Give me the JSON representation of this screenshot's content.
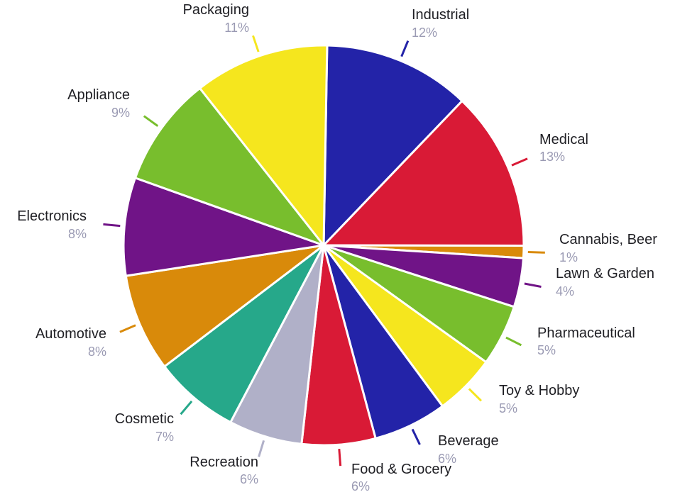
{
  "chart_data": {
    "type": "pie",
    "title": "",
    "slices": [
      {
        "label": "Industrial",
        "value": 12,
        "value_label": "12%",
        "color": "#2323a8"
      },
      {
        "label": "Medical",
        "value": 13,
        "value_label": "13%",
        "color": "#d91a36"
      },
      {
        "label": "Cannabis, Beer",
        "value": 1,
        "value_label": "1%",
        "color": "#d98a0a"
      },
      {
        "label": "Lawn & Garden",
        "value": 4,
        "value_label": "4%",
        "color": "#701487"
      },
      {
        "label": "Pharmaceutical",
        "value": 5,
        "value_label": "5%",
        "color": "#78be2d"
      },
      {
        "label": "Toy & Hobby",
        "value": 5,
        "value_label": "5%",
        "color": "#f5e61e"
      },
      {
        "label": "Beverage",
        "value": 6,
        "value_label": "6%",
        "color": "#2323a8"
      },
      {
        "label": "Food & Grocery",
        "value": 6,
        "value_label": "6%",
        "color": "#d91a36"
      },
      {
        "label": "Recreation",
        "value": 6,
        "value_label": "6%",
        "color": "#b0b0c8"
      },
      {
        "label": "Cosmetic",
        "value": 7,
        "value_label": "7%",
        "color": "#26a88a"
      },
      {
        "label": "Automotive",
        "value": 8,
        "value_label": "8%",
        "color": "#d98a0a"
      },
      {
        "label": "Electronics",
        "value": 8,
        "value_label": "8%",
        "color": "#701487"
      },
      {
        "label": "Appliance",
        "value": 9,
        "value_label": "9%",
        "color": "#78be2d"
      },
      {
        "label": "Packaging",
        "value": 11,
        "value_label": "11%",
        "color": "#f5e61e"
      }
    ]
  },
  "colors": {
    "label_text": "#1f1f24",
    "percent_text": "#9a9ab3",
    "slice_border": "#ffffff"
  }
}
